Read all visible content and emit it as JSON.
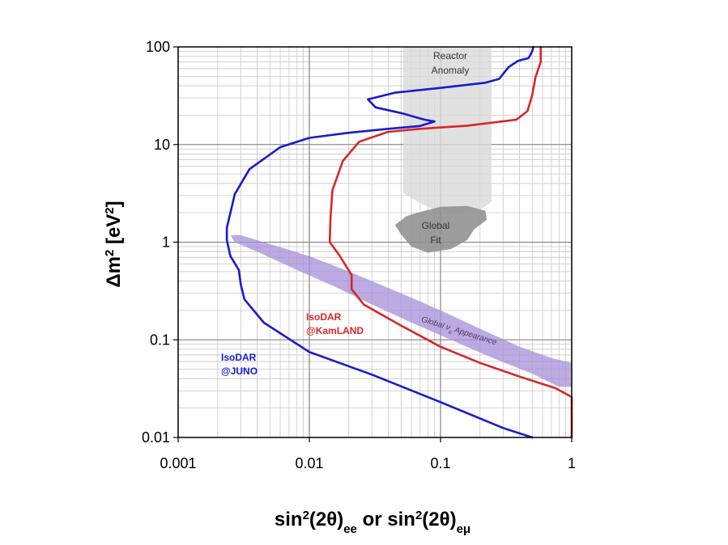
{
  "chart_data": {
    "type": "line",
    "title": "",
    "xlabel": {
      "base": "sin",
      "sup": "2",
      "mid": "(2θ)",
      "sub1": "ee",
      "join": " or  ",
      "base2": "sin",
      "sup2": "2",
      "mid2": "(2θ)",
      "sub2": "eμ"
    },
    "ylabel": {
      "pre": "Δm",
      "sup": "2",
      "post": "  [eV",
      "sup2": "2",
      "end": "]"
    },
    "xscale": "log",
    "yscale": "log",
    "xlim": [
      0.001,
      1
    ],
    "ylim": [
      0.01,
      100
    ],
    "x_ticks": [
      {
        "value": 0.001,
        "label": "0.001"
      },
      {
        "value": 0.01,
        "label": "0.01"
      },
      {
        "value": 0.1,
        "label": "0.1"
      },
      {
        "value": 1,
        "label": "1"
      }
    ],
    "y_ticks": [
      {
        "value": 0.01,
        "label": "0.01"
      },
      {
        "value": 0.1,
        "label": "0.1"
      },
      {
        "value": 1,
        "label": "1"
      },
      {
        "value": 10,
        "label": "10"
      },
      {
        "value": 100,
        "label": "100"
      }
    ],
    "grid": true,
    "series": [
      {
        "name": "IsoDAR@JUNO",
        "label_lines": [
          "IsoDAR",
          "@JUNO"
        ],
        "color": "#1a1acc",
        "points": [
          [
            0.51,
            100
          ],
          [
            0.5,
            90
          ],
          [
            0.47,
            77
          ],
          [
            0.39,
            72
          ],
          [
            0.33,
            62
          ],
          [
            0.28,
            47
          ],
          [
            0.22,
            43
          ],
          [
            0.1,
            38
          ],
          [
            0.045,
            34
          ],
          [
            0.028,
            29
          ],
          [
            0.032,
            24
          ],
          [
            0.05,
            21
          ],
          [
            0.075,
            18
          ],
          [
            0.09,
            17.2
          ],
          [
            0.07,
            15.5
          ],
          [
            0.04,
            14.5
          ],
          [
            0.02,
            13.2
          ],
          [
            0.01,
            11.7
          ],
          [
            0.006,
            9.4
          ],
          [
            0.0035,
            5.6
          ],
          [
            0.0027,
            3.1
          ],
          [
            0.00235,
            1.4
          ],
          [
            0.00235,
            1.05
          ],
          [
            0.0025,
            0.72
          ],
          [
            0.0029,
            0.52
          ],
          [
            0.003,
            0.37
          ],
          [
            0.0032,
            0.26
          ],
          [
            0.0045,
            0.15
          ],
          [
            0.01,
            0.075
          ],
          [
            0.03,
            0.044
          ],
          [
            0.1,
            0.023
          ],
          [
            0.3,
            0.0125
          ],
          [
            0.5,
            0.01
          ]
        ]
      },
      {
        "name": "IsoDAR@KamLAND",
        "label_lines": [
          "IsoDAR",
          "@KamLAND"
        ],
        "color": "#d42828",
        "points": [
          [
            0.58,
            100
          ],
          [
            0.58,
            70
          ],
          [
            0.53,
            49
          ],
          [
            0.5,
            32
          ],
          [
            0.46,
            22
          ],
          [
            0.38,
            18
          ],
          [
            0.16,
            15.6
          ],
          [
            0.07,
            14.5
          ],
          [
            0.04,
            13.5
          ],
          [
            0.024,
            10.7
          ],
          [
            0.018,
            6.8
          ],
          [
            0.015,
            3.4
          ],
          [
            0.0145,
            1.75
          ],
          [
            0.0143,
            1.0
          ],
          [
            0.017,
            0.73
          ],
          [
            0.021,
            0.46
          ],
          [
            0.021,
            0.33
          ],
          [
            0.026,
            0.23
          ],
          [
            0.05,
            0.14
          ],
          [
            0.1,
            0.085
          ],
          [
            0.2,
            0.058
          ],
          [
            0.4,
            0.042
          ],
          [
            0.75,
            0.032
          ],
          [
            1.0,
            0.026
          ],
          [
            1.0,
            0.01
          ]
        ]
      }
    ],
    "regions": [
      {
        "name": "Reactor Anomaly",
        "label_lines": [
          "Reactor",
          "Anomaly"
        ],
        "color": "#d9d9d9"
      },
      {
        "name": "Global Fit",
        "label_lines": [
          "Global",
          "Fit"
        ],
        "color": "#8c8c8c"
      },
      {
        "name": "Global νe Appearance",
        "label_parts": [
          "Global  ",
          "ν",
          "e",
          "  Appearance"
        ],
        "color": "#a58fd8"
      }
    ]
  }
}
